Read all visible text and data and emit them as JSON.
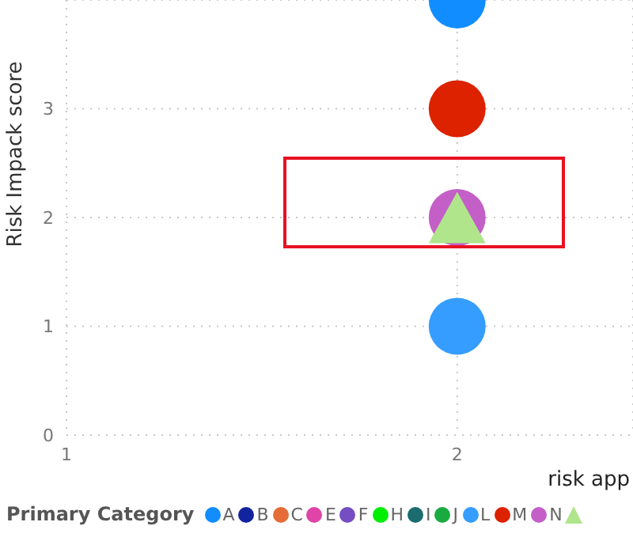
{
  "chart_data": {
    "type": "scatter",
    "ylabel": "Risk Impack score",
    "xlabel": "risk app",
    "legend_title": "Primary Category",
    "legend": "bottom",
    "grid": true,
    "marker": "circle",
    "xlim": [
      1,
      2.45
    ],
    "xticks": [
      1,
      2
    ],
    "ylim": [
      0,
      4
    ],
    "yticks": [
      0,
      1,
      2,
      3
    ],
    "x": [
      2
    ],
    "series": [
      {
        "name": "A",
        "color": "#118dff",
        "values": [
          4
        ]
      },
      {
        "name": "B",
        "color": "#12239e",
        "values": [
          null
        ]
      },
      {
        "name": "C",
        "color": "#e66c37",
        "values": [
          null
        ]
      },
      {
        "name": "E",
        "color": "#e044a7",
        "values": [
          null
        ]
      },
      {
        "name": "F",
        "color": "#744ec2",
        "values": [
          null
        ]
      },
      {
        "name": "H",
        "color": "#00ee00",
        "values": [
          null
        ]
      },
      {
        "name": "I",
        "color": "#1a6c6f",
        "values": [
          null
        ]
      },
      {
        "name": "J",
        "color": "#1aab40",
        "values": [
          null
        ]
      },
      {
        "name": "L",
        "color": "#359dff",
        "values": [
          1
        ]
      },
      {
        "name": "M",
        "color": "#dd2200",
        "values": [
          3
        ]
      },
      {
        "name": "N",
        "color": "#c35fc7",
        "values": [
          2
        ]
      },
      {
        "color": "#b0e58b",
        "marker": "triangle",
        "values": [
          2
        ]
      }
    ]
  }
}
